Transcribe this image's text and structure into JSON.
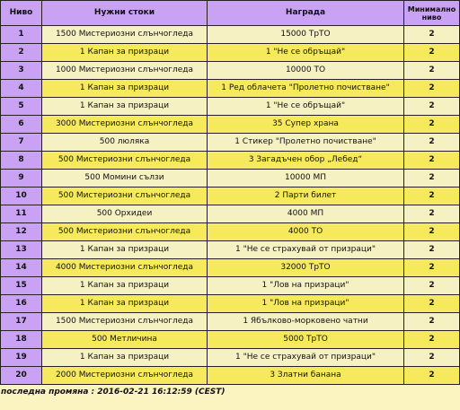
{
  "headers": {
    "level": "Ниво",
    "goods": "Нужни стоки",
    "reward": "Награда",
    "min_level": "Минимално ниво"
  },
  "rows": [
    {
      "level": "1",
      "goods": "1500 Мистериозни слънчогледа",
      "reward": "15000 ТрТО",
      "min": "2"
    },
    {
      "level": "2",
      "goods": "1 Капан за призраци",
      "reward": "1 \"Не се обръщай\"",
      "min": "2"
    },
    {
      "level": "3",
      "goods": "1000 Мистериозни слънчогледа",
      "reward": "10000 ТО",
      "min": "2"
    },
    {
      "level": "4",
      "goods": "1 Капан за призраци",
      "reward": "1 Ред облачета \"Пролетно почистване\"",
      "min": "2"
    },
    {
      "level": "5",
      "goods": "1 Капан за призраци",
      "reward": "1 \"Не се обръщай\"",
      "min": "2"
    },
    {
      "level": "6",
      "goods": "3000 Мистериозни слънчогледа",
      "reward": "35 Супер храна",
      "min": "2"
    },
    {
      "level": "7",
      "goods": "500 люляка",
      "reward": "1 Стикер \"Пролетно почистване\"",
      "min": "2"
    },
    {
      "level": "8",
      "goods": "500 Мистериозни слънчогледа",
      "reward": "3 Загадъчен обор „Лебед“",
      "min": "2"
    },
    {
      "level": "9",
      "goods": "500 Момини сълзи",
      "reward": "10000 МП",
      "min": "2"
    },
    {
      "level": "10",
      "goods": "500 Мистериозни слънчогледа",
      "reward": "2 Парти билет",
      "min": "2"
    },
    {
      "level": "11",
      "goods": "500 Орхидеи",
      "reward": "4000 МП",
      "min": "2"
    },
    {
      "level": "12",
      "goods": "500 Мистериозни слънчогледа",
      "reward": "4000 ТО",
      "min": "2"
    },
    {
      "level": "13",
      "goods": "1 Капан за призраци",
      "reward": "1 \"Не се страхувай от призраци\"",
      "min": "2"
    },
    {
      "level": "14",
      "goods": "4000 Мистериозни слънчогледа",
      "reward": "32000 ТрТО",
      "min": "2"
    },
    {
      "level": "15",
      "goods": "1 Капан за призраци",
      "reward": "1 \"Лов на призраци\"",
      "min": "2"
    },
    {
      "level": "16",
      "goods": "1 Капан за призраци",
      "reward": "1 \"Лов на призраци\"",
      "min": "2"
    },
    {
      "level": "17",
      "goods": "1500 Мистериозни слънчогледа",
      "reward": "1 Ябълково-морковено чатни",
      "min": "2"
    },
    {
      "level": "18",
      "goods": "500 Метличина",
      "reward": "5000 ТрТО",
      "min": "2"
    },
    {
      "level": "19",
      "goods": "1 Капан за призраци",
      "reward": "1 \"Не се страхувай от призраци\"",
      "min": "2"
    },
    {
      "level": "20",
      "goods": "2000 Мистериозни слънчогледа",
      "reward": "3 Златни банана",
      "min": "2"
    }
  ],
  "footer": {
    "text": "последна промяна : 2016-02-21 16:12:59 (CEST)"
  }
}
